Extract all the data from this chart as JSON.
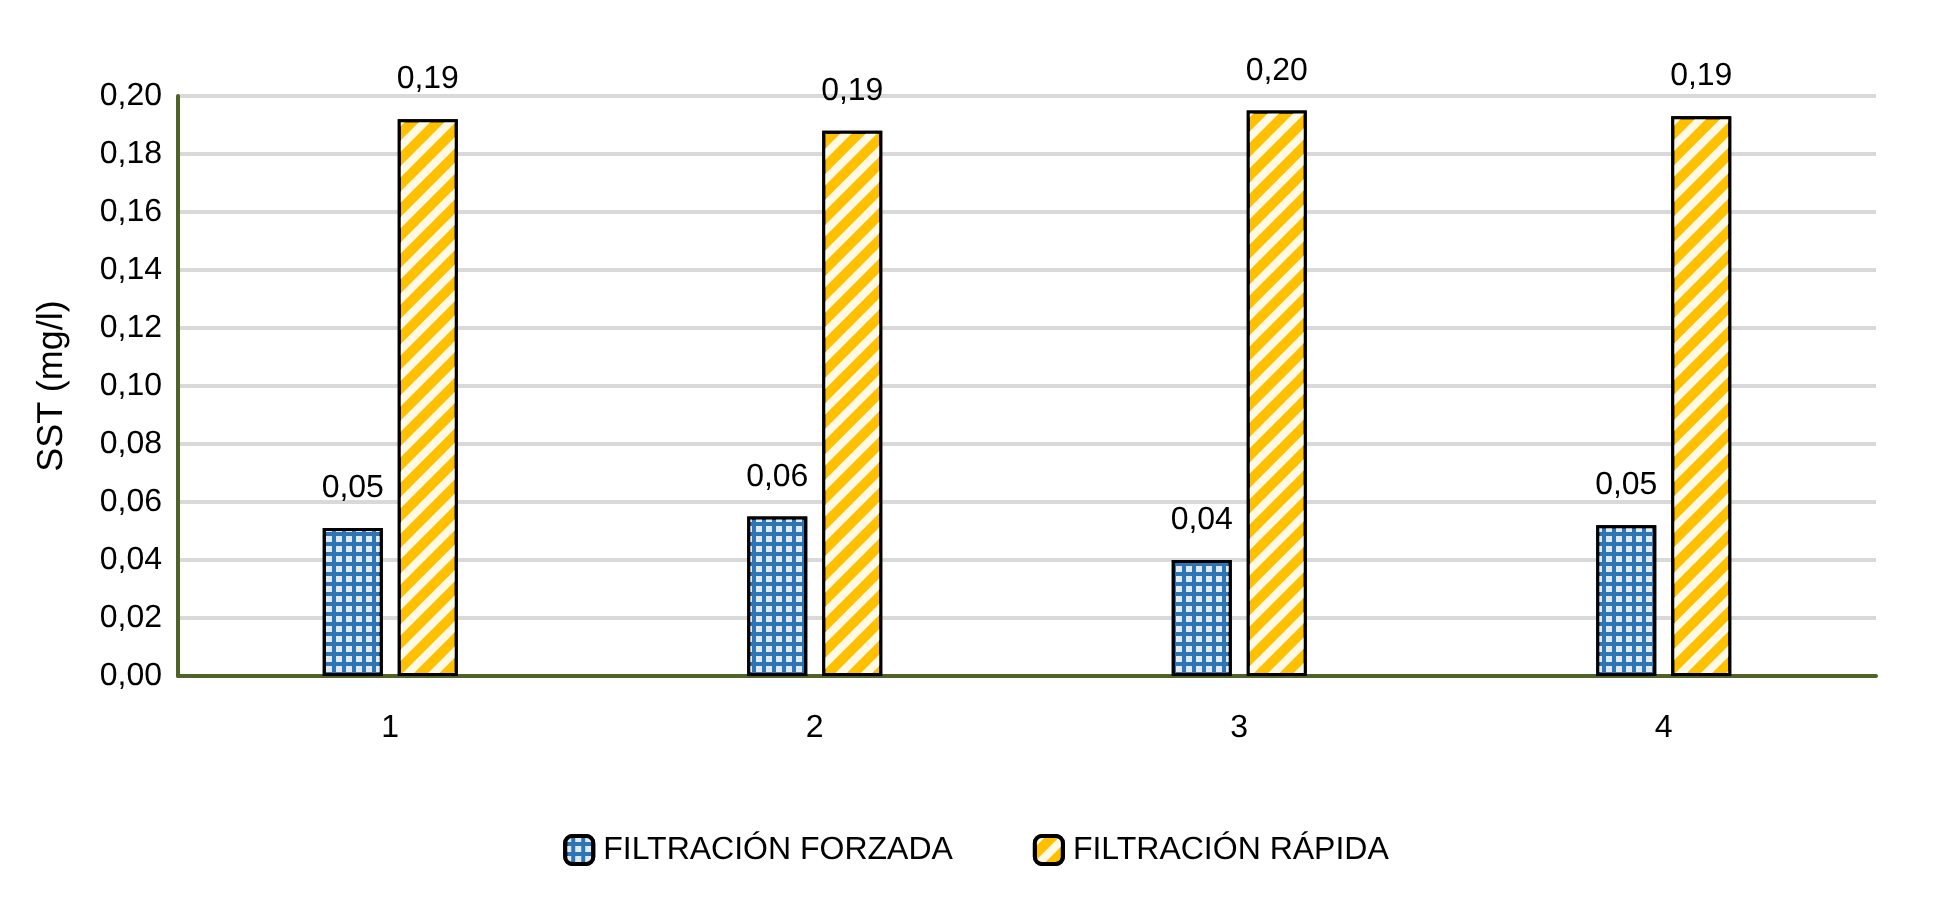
{
  "chart_data": {
    "type": "bar",
    "ylabel": "SST (mg/l)",
    "categories": [
      "1",
      "2",
      "3",
      "4"
    ],
    "series": [
      {
        "name": "FILTRACIÓN FORZADA",
        "color": "#2e75b6",
        "values": [
          0.051,
          0.055,
          0.04,
          0.052
        ],
        "value_labels": [
          "0,05",
          "0,06",
          "0,04",
          "0,05"
        ]
      },
      {
        "name": "FILTRACIÓN RÁPIDA",
        "color": "#ffc000",
        "values": [
          0.192,
          0.188,
          0.195,
          0.193
        ],
        "value_labels": [
          "0,19",
          "0,19",
          "0,20",
          "0,19"
        ]
      }
    ],
    "ylim": [
      0,
      0.2
    ],
    "yticks": [
      {
        "value": 0,
        "label": "0,00"
      },
      {
        "value": 0.02,
        "label": "0,02"
      },
      {
        "value": 0.04,
        "label": "0,04"
      },
      {
        "value": 0.06,
        "label": "0,06"
      },
      {
        "value": 0.08,
        "label": "0,08"
      },
      {
        "value": 0.1,
        "label": "0,10"
      },
      {
        "value": 0.12,
        "label": "0,12"
      },
      {
        "value": 0.14,
        "label": "0,14"
      },
      {
        "value": 0.16,
        "label": "0,16"
      },
      {
        "value": 0.18,
        "label": "0,18"
      },
      {
        "value": 0.2,
        "label": "0,20"
      }
    ],
    "grid": "y",
    "legend": "bottom"
  }
}
